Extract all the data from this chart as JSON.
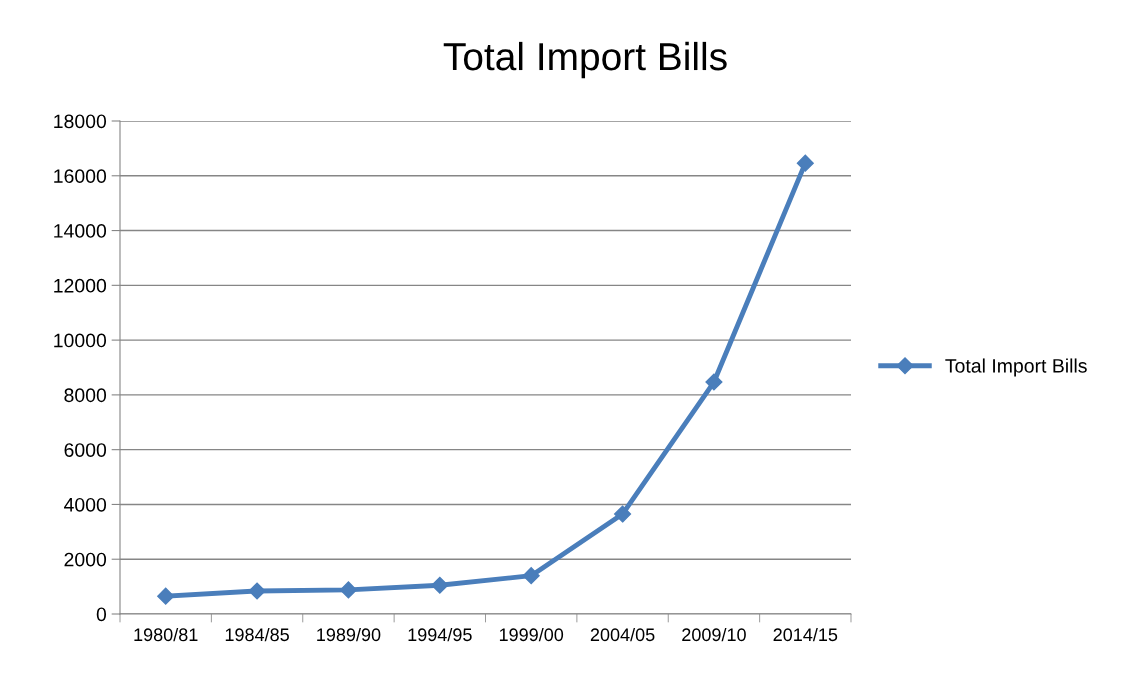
{
  "chart_data": {
    "type": "line",
    "title": "Total Import Bills",
    "categories": [
      "1980/81",
      "1984/85",
      "1989/90",
      "1994/95",
      "1999/00",
      "2004/05",
      "2009/10",
      "2014/15"
    ],
    "series": [
      {
        "name": "Total Import Bills",
        "color": "#4a7ebb",
        "values": [
          650,
          840,
          880,
          1050,
          1400,
          3650,
          8470,
          16460
        ]
      }
    ],
    "ylim": [
      0,
      18000
    ],
    "yticks": [
      0,
      2000,
      4000,
      6000,
      8000,
      10000,
      12000,
      14000,
      16000,
      18000
    ],
    "grid": "y",
    "legend": "right",
    "marker": "diamond",
    "line_style": "solid"
  }
}
